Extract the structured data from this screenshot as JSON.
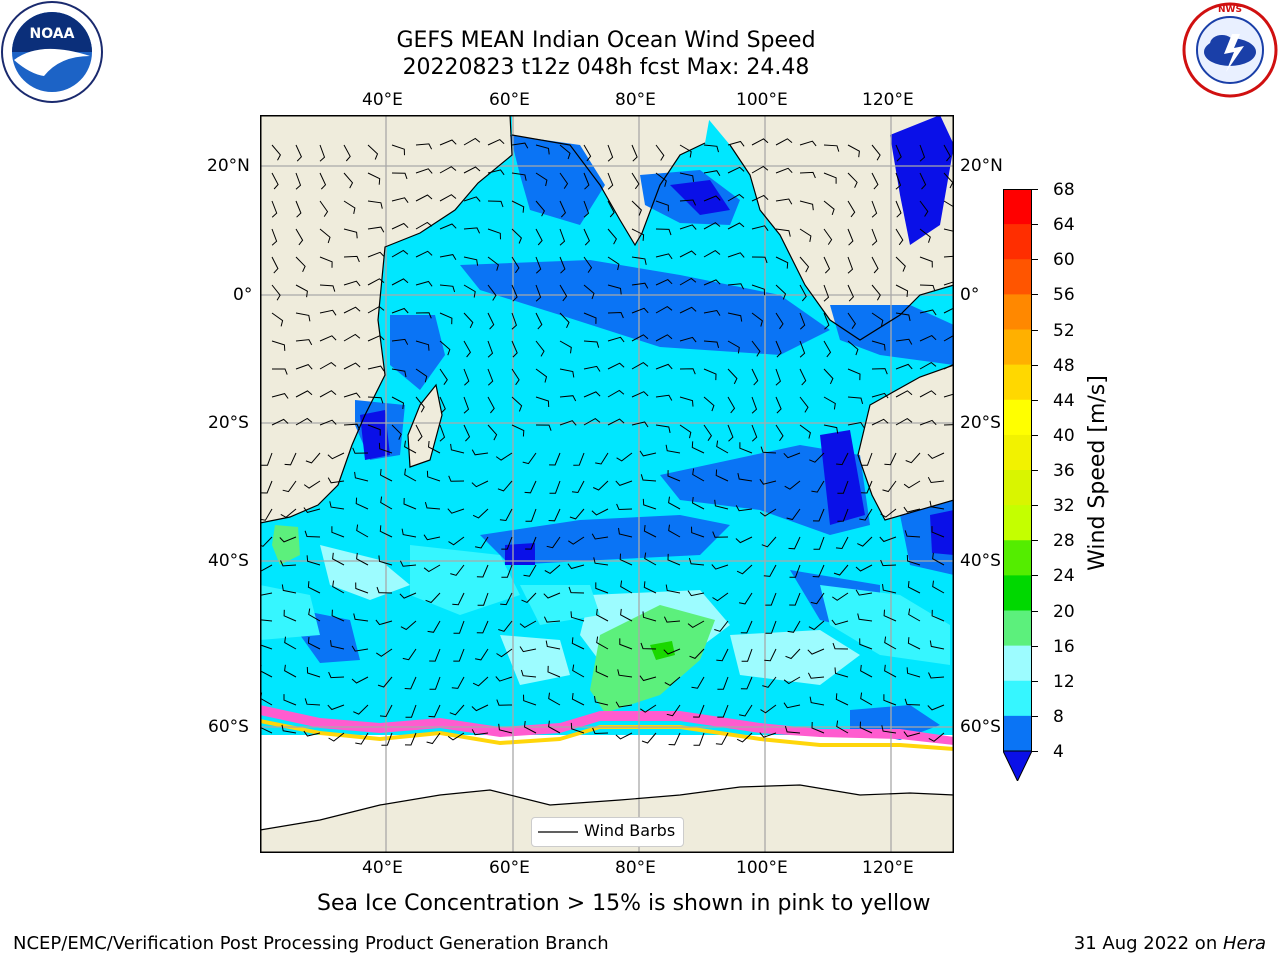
{
  "title": {
    "line1": "GEFS MEAN Indian Ocean Wind Speed",
    "line2": "20220823 t12z 048h fcst   Max: 24.48"
  },
  "logos": {
    "left": {
      "icon": "noaa-logo",
      "text": "NOAA"
    },
    "right": {
      "icon": "national-weather-service-logo",
      "text": "NATIONAL WEATHER SERVICE"
    }
  },
  "map": {
    "lon_top": [
      "40°E",
      "60°E",
      "80°E",
      "100°E",
      "120°E"
    ],
    "lon_bottom": [
      "40°E",
      "60°E",
      "80°E",
      "100°E",
      "120°E"
    ],
    "lat_left": [
      "20°N",
      "0°",
      "20°S",
      "40°S",
      "60°S"
    ],
    "lat_right": [
      "20°N",
      "0°",
      "20°S",
      "40°S",
      "60°S"
    ],
    "legend_label": "Wind Barbs",
    "colors": {
      "land": "#efecdc",
      "w4_8": "#0a74f5",
      "w8_12": "#00e7ff",
      "w12_16": "#36f6ff",
      "w16_20": "#9dfcff",
      "w20_24": "#5cf07c",
      "w24_28": "#1ad800",
      "deep": "#0a10e8",
      "ice_pink": "#ff5ccf",
      "ice_yellow": "#ffd60a"
    }
  },
  "colorbar": {
    "label": "Wind Speed [m/s]",
    "ticks": [
      "68",
      "64",
      "60",
      "56",
      "52",
      "48",
      "44",
      "40",
      "36",
      "32",
      "28",
      "24",
      "20",
      "16",
      "12",
      "8",
      "4"
    ],
    "colors": [
      "#ff0000",
      "#ff2e00",
      "#ff5500",
      "#ff8800",
      "#ffb000",
      "#ffd800",
      "#ffff00",
      "#f2f200",
      "#d9f500",
      "#c4ff00",
      "#54ed00",
      "#00d800",
      "#5cf07c",
      "#9dfcff",
      "#36f6ff",
      "#00e7ff",
      "#0a74f5"
    ],
    "under_color": "#0a10e8"
  },
  "caption": "Sea Ice Concentration > 15% is shown in pink to yellow",
  "footer": {
    "left": "NCEP/EMC/Verification Post Processing Product Generation Branch",
    "right_date": "31 Aug 2022 on ",
    "right_host": "Hera"
  }
}
